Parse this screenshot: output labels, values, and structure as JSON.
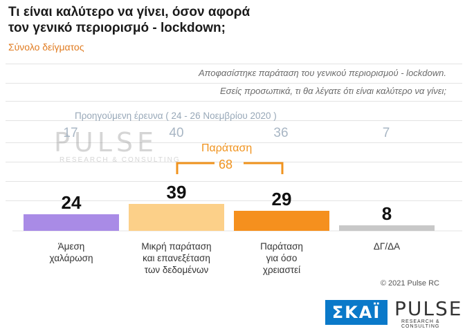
{
  "header": {
    "title_line1": "Τι είναι καλύτερο να γίνει, όσον αφορά",
    "title_line2": "τον γενικό περιορισμό - lockdown;",
    "subtitle": "Σύνολο δείγματος"
  },
  "question": {
    "line1": "Αποφασίστηκε παράταση του γενικού περιορισμού - lockdown.",
    "line2": "Εσείς προσωπικά, τι θα λέγατε ότι είναι καλύτερο να γίνει;"
  },
  "previous_survey": {
    "label": "Προηγούμενη έρευνα ( 24 - 26 Νοεμβρίου 2020 )",
    "values": [
      "17",
      "40",
      "36",
      "7"
    ]
  },
  "extension_group": {
    "label": "Παράταση",
    "value": "68"
  },
  "chart_data": {
    "type": "bar",
    "categories": [
      [
        "Άμεση",
        "χαλάρωση"
      ],
      [
        "Μικρή παράταση",
        "και επανεξέταση",
        "των δεδομένων"
      ],
      [
        "Παράταση",
        "για όσο",
        "χρειαστεί"
      ],
      [
        "ΔΓ/ΔΑ"
      ]
    ],
    "values": [
      24,
      39,
      29,
      8
    ],
    "previous_values": [
      17,
      40,
      36,
      7
    ],
    "colors": [
      "#a98be6",
      "#fcd089",
      "#f5901e",
      "#c8c8c8"
    ],
    "ylim": [
      0,
      100
    ]
  },
  "footer": {
    "copyright": "© 2021 Pulse RC",
    "skai_logo": "ΣΚΑΪ",
    "pulse_logo": "PULSE",
    "pulse_tagline": "RESEARCH & CONSULTING"
  },
  "watermark": {
    "word": "PULSE",
    "tagline": "RESEARCH & CONSULTING"
  }
}
